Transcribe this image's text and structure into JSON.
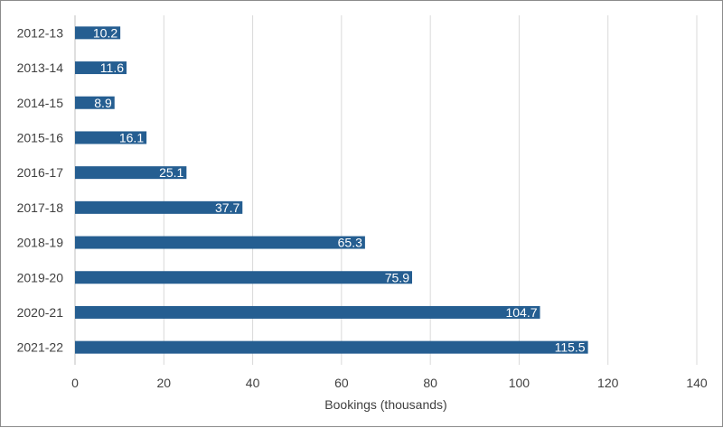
{
  "chart_data": {
    "type": "bar",
    "orientation": "horizontal",
    "categories": [
      "2012-13",
      "2013-14",
      "2014-15",
      "2015-16",
      "2016-17",
      "2017-18",
      "2018-19",
      "2019-20",
      "2020-21",
      "2021-22"
    ],
    "values": [
      10.2,
      11.6,
      8.9,
      16.1,
      25.1,
      37.7,
      65.3,
      75.9,
      104.7,
      115.5
    ],
    "data_labels": [
      "10.2",
      "11.6",
      "8.9",
      "16.1",
      "25.1",
      "37.7",
      "65.3",
      "75.9",
      "104.7",
      "115.5"
    ],
    "title": "",
    "xlabel": "Bookings (thousands)",
    "ylabel": "",
    "xlim": [
      0,
      140
    ],
    "xticks": [
      "0",
      "20",
      "40",
      "60",
      "80",
      "100",
      "120",
      "140"
    ],
    "grid": "vertical",
    "legend": "none",
    "bar_color": "#255e91",
    "grid_color": "#d9d9d9",
    "axis_color": "#bfbfbf"
  }
}
